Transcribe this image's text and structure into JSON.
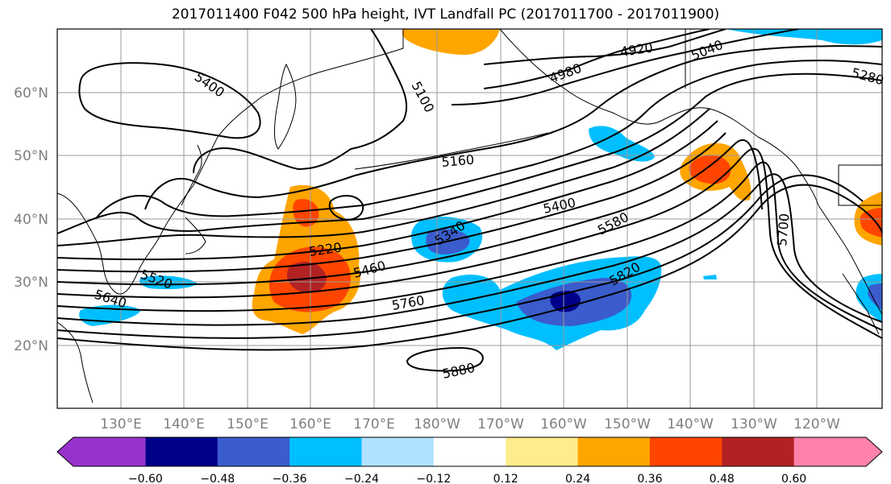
{
  "title": "2017011400 F042 500 hPa height, IVT Landfall PC (2017011700 - 2017011900)",
  "lon_ticks": [
    "130°E",
    "140°E",
    "150°E",
    "160°E",
    "170°E",
    "180°W",
    "170°W",
    "160°W",
    "150°W",
    "140°W",
    "130°W",
    "120°W"
  ],
  "lat_ticks": [
    "60°N",
    "50°N",
    "40°N",
    "30°N",
    "20°N"
  ],
  "colorbar": {
    "colors": [
      "#9932cc",
      "#00008b",
      "#3a5ccc",
      "#00bfff",
      "#b0e2ff",
      "#ffffff",
      "#ffec8b",
      "#ffa500",
      "#ff4500",
      "#b22222",
      "#ff82ab"
    ],
    "labels": [
      "−0.60",
      "−0.48",
      "−0.36",
      "−0.24",
      "−0.12",
      "0.12",
      "0.24",
      "0.36",
      "0.48",
      "0.60"
    ]
  },
  "contour_labels": [
    "5400",
    "5100",
    "4920",
    "4980",
    "5040",
    "5280",
    "5160",
    "5220",
    "5340",
    "5400",
    "5460",
    "5520",
    "5580",
    "5640",
    "5700",
    "5760",
    "5820",
    "5880"
  ]
}
